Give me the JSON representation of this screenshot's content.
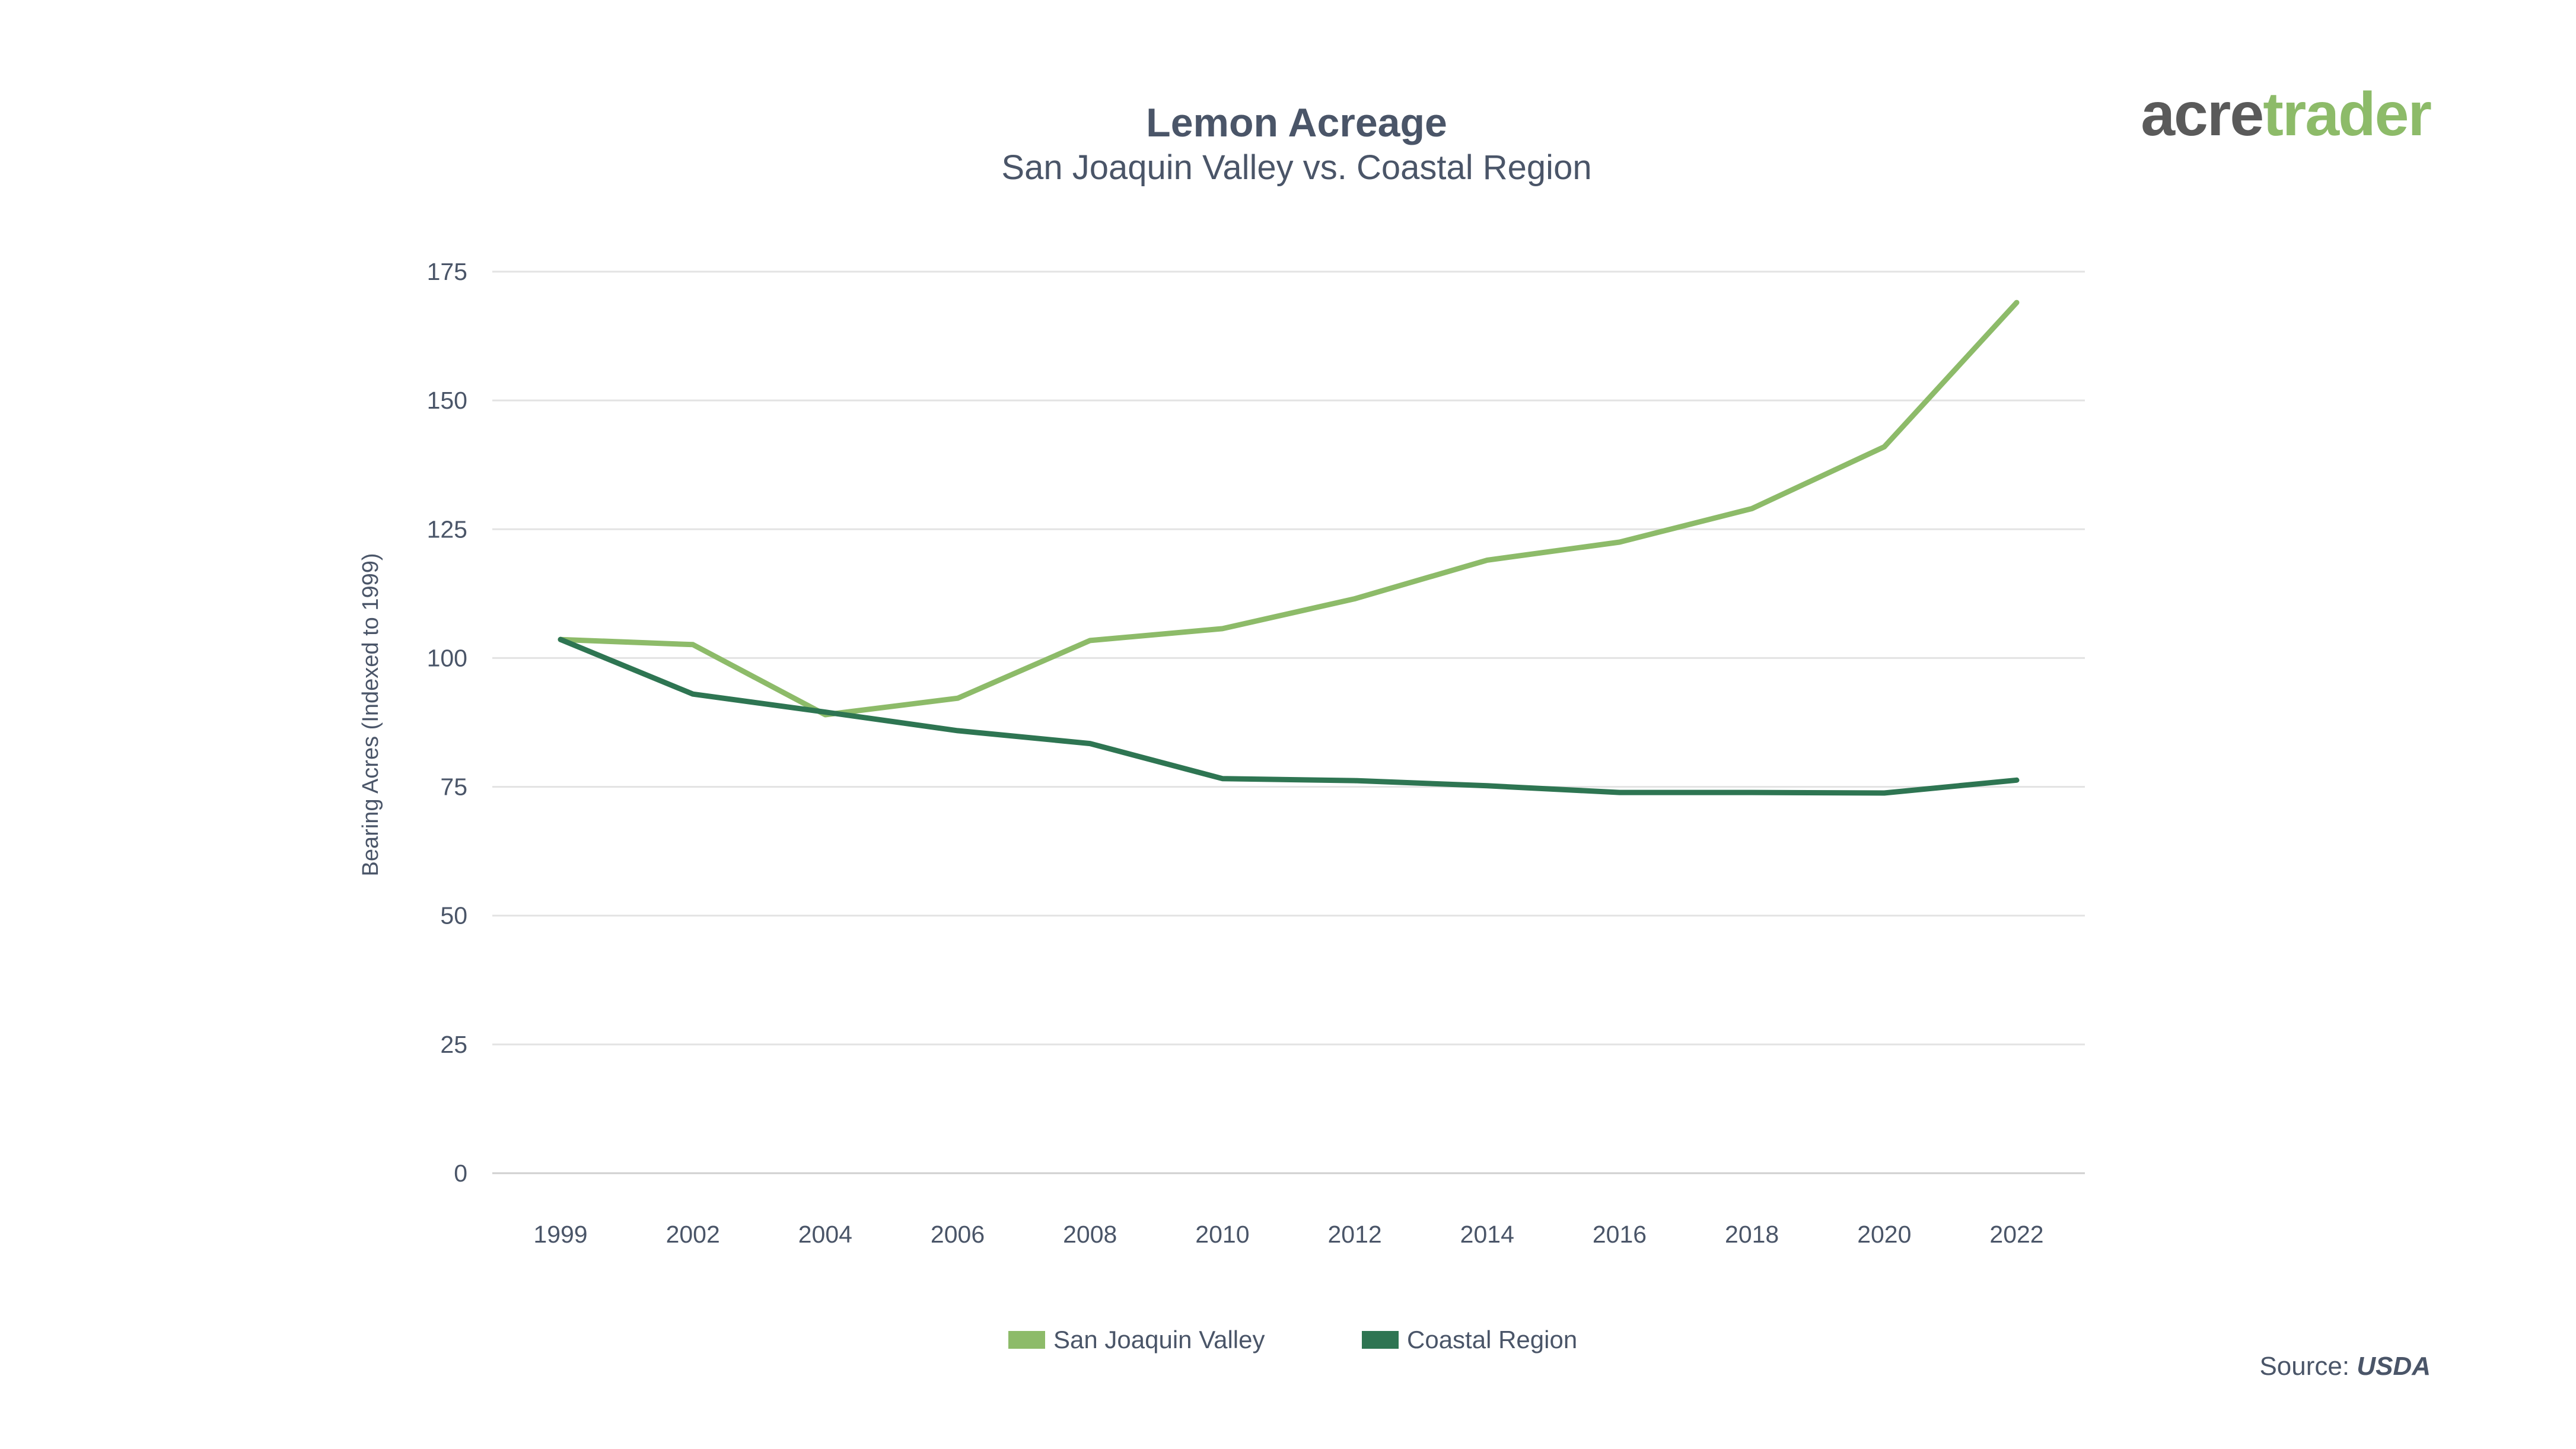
{
  "logo": {
    "part1": "acre",
    "part2": "trader",
    "color1": "#5a5a5a",
    "color2": "#8dbb69"
  },
  "source": {
    "prefix": "Source: ",
    "name": "USDA"
  },
  "chart_data": {
    "type": "line",
    "title": "Lemon Acreage",
    "subtitle": "San Joaquin Valley vs. Coastal Region",
    "xlabel": "",
    "ylabel": "Bearing Acres (Indexed to 1999)",
    "ylim": [
      0,
      175
    ],
    "yticks": [
      0,
      25,
      50,
      75,
      100,
      125,
      150,
      175
    ],
    "xticks": [
      "1999",
      "2002",
      "2004",
      "2006",
      "2008",
      "2010",
      "2012",
      "2014",
      "2016",
      "2018",
      "2020",
      "2022"
    ],
    "grid": true,
    "legend_position": "bottom-center",
    "series": [
      {
        "name": "San Joaquin Valley",
        "color": "#8dbb69",
        "values": [
          103.6,
          102.6,
          89.0,
          92.2,
          103.4,
          105.7,
          111.5,
          119.0,
          122.5,
          129.0,
          141.0,
          169.0
        ]
      },
      {
        "name": "Coastal Region",
        "color": "#2e7552",
        "values": [
          103.6,
          93.0,
          89.5,
          85.9,
          83.4,
          76.6,
          76.2,
          75.2,
          73.9,
          73.9,
          73.8,
          76.3
        ]
      }
    ]
  }
}
